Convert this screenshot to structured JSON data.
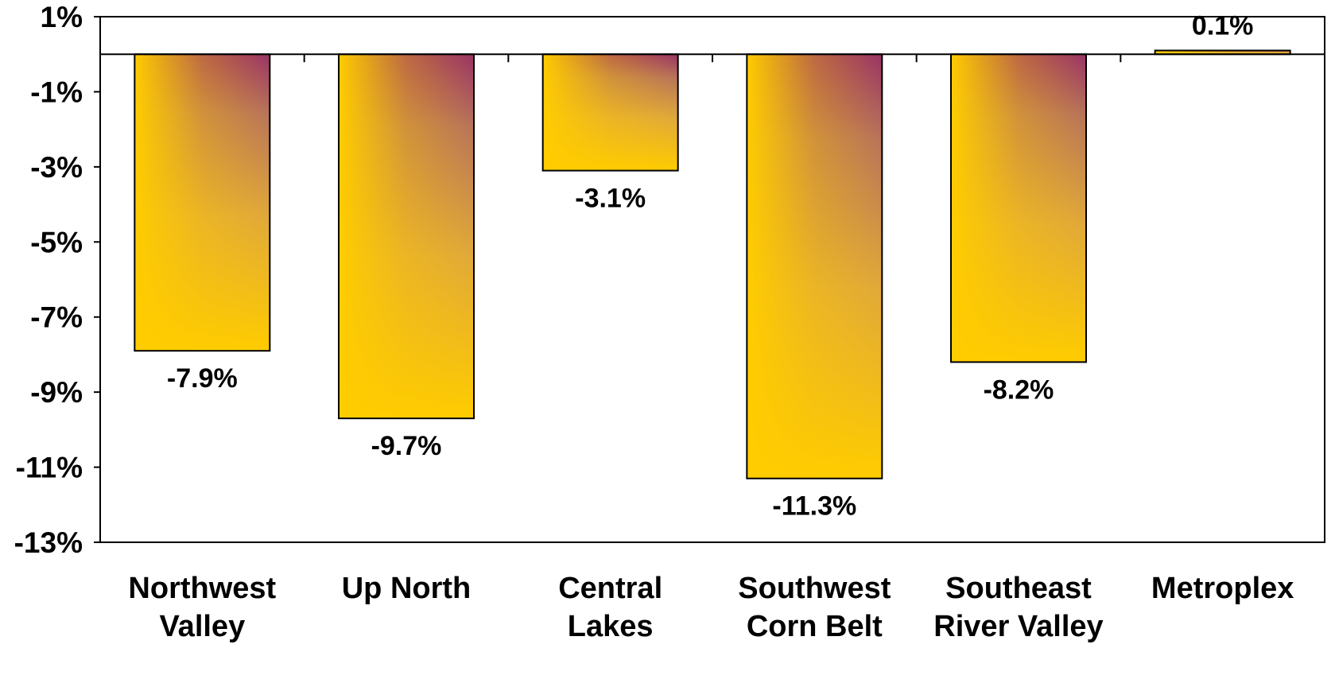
{
  "chart_data": {
    "type": "bar",
    "categories": [
      [
        "Northwest",
        "Valley"
      ],
      [
        "Up North"
      ],
      [
        "Central",
        "Lakes"
      ],
      [
        "Southwest",
        "Corn Belt"
      ],
      [
        "Southeast",
        "River Valley"
      ],
      [
        "Metroplex"
      ]
    ],
    "values": [
      -7.9,
      -9.7,
      -3.1,
      -11.3,
      -8.2,
      0.1
    ],
    "data_labels": [
      "-7.9%",
      "-9.7%",
      "-3.1%",
      "-11.3%",
      "-8.2%",
      "0.1%"
    ],
    "y_ticks": [
      1,
      -1,
      -3,
      -5,
      -7,
      -9,
      -11,
      -13
    ],
    "y_tick_labels": [
      "1%",
      "-1%",
      "-3%",
      "-5%",
      "-7%",
      "-9%",
      "-11%",
      "-13%"
    ],
    "ylim": [
      -13,
      1
    ],
    "grid": false,
    "legend": "none",
    "colors": {
      "bar_light": "#FFCC00",
      "bar_dark": "#993366",
      "outline": "#000000"
    }
  }
}
